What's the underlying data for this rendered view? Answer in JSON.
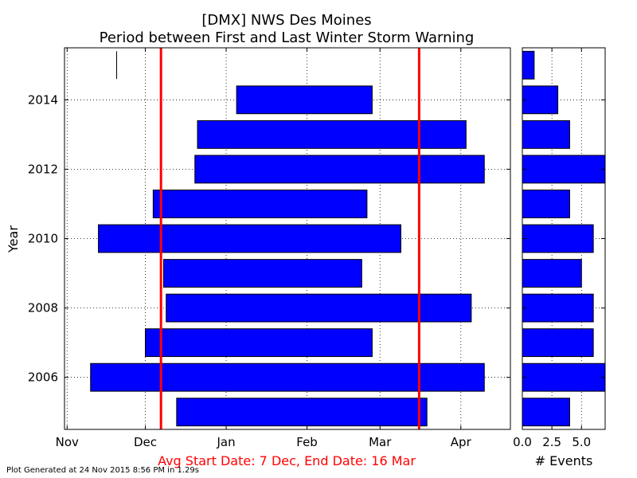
{
  "chart_data": {
    "type": "bar",
    "title_lines": [
      "[DMX] NWS Des Moines",
      "Period between First and Last Winter Storm Warning"
    ],
    "ylabel": "Year",
    "x_ticks": [
      {
        "day": 0,
        "label": "Nov"
      },
      {
        "day": 30,
        "label": "Dec"
      },
      {
        "day": 61,
        "label": "Jan"
      },
      {
        "day": 92,
        "label": "Feb"
      },
      {
        "day": 120,
        "label": "Mar"
      },
      {
        "day": 151,
        "label": "Apr"
      }
    ],
    "x_range_days": [
      -1,
      170
    ],
    "y_ticks": [
      2006,
      2008,
      2010,
      2012,
      2014
    ],
    "y_range": [
      2004.5,
      2015.5
    ],
    "series": [
      {
        "periods": [
          {
            "year": 2005,
            "start": "Dec 13",
            "end": "Mar 19"
          },
          {
            "year": 2006,
            "start": "Nov 10",
            "end": "Apr 10"
          },
          {
            "year": 2007,
            "start": "Dec 1",
            "end": "Feb 26"
          },
          {
            "year": 2008,
            "start": "Dec 9",
            "end": "Apr 5"
          },
          {
            "year": 2009,
            "start": "Dec 8",
            "end": "Feb 22"
          },
          {
            "year": 2010,
            "start": "Nov 13",
            "end": "Mar 9"
          },
          {
            "year": 2011,
            "start": "Dec 4",
            "end": "Feb 24"
          },
          {
            "year": 2012,
            "start": "Dec 20",
            "end": "Apr 10"
          },
          {
            "year": 2013,
            "start": "Dec 21",
            "end": "Apr 3"
          },
          {
            "year": 2014,
            "start": "Jan 5",
            "end": "Feb 26"
          },
          {
            "year": 2015,
            "start": "Nov 20",
            "end": "Nov 20"
          }
        ]
      }
    ],
    "avg_lines": [
      {
        "label": "Avg Start",
        "date": "Dec 7"
      },
      {
        "label": "Avg End",
        "date": "Mar 16"
      }
    ],
    "avg_caption": "Avg Start Date: 7 Dec, End Date: 16 Mar",
    "events_panel": {
      "xlabel": "# Events",
      "x_ticks": [
        {
          "value": 0,
          "label": "0.0"
        },
        {
          "value": 2.5,
          "label": "2.5"
        },
        {
          "value": 5,
          "label": "5.0"
        }
      ],
      "x_range": [
        0,
        7
      ],
      "counts": [
        {
          "year": 2005,
          "events": 4
        },
        {
          "year": 2006,
          "events": 7
        },
        {
          "year": 2007,
          "events": 6
        },
        {
          "year": 2008,
          "events": 6
        },
        {
          "year": 2009,
          "events": 5
        },
        {
          "year": 2010,
          "events": 6
        },
        {
          "year": 2011,
          "events": 4
        },
        {
          "year": 2012,
          "events": 7
        },
        {
          "year": 2013,
          "events": 4
        },
        {
          "year": 2014,
          "events": 3
        },
        {
          "year": 2015,
          "events": 1
        }
      ]
    },
    "bar_color": "#0000ff",
    "avg_line_color": "#ff0000",
    "grid": true
  },
  "footer": "Plot Generated at 24 Nov 2015 8:56 PM in 1.29s"
}
